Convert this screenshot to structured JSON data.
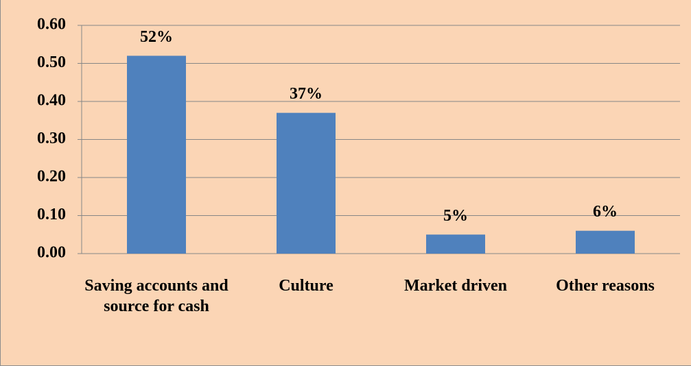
{
  "chart_data": {
    "type": "bar",
    "categories": [
      "Saving accounts and source for cash",
      "Culture",
      "Market driven",
      "Other reasons"
    ],
    "values": [
      0.52,
      0.37,
      0.05,
      0.06
    ],
    "value_labels": [
      "52%",
      "37%",
      "5%",
      "6%"
    ],
    "color": "#4f81bd",
    "ylim": [
      0,
      0.6
    ],
    "yticks": [
      {
        "value": 0,
        "label": "0.00"
      },
      {
        "value": 0.1,
        "label": "0.10"
      },
      {
        "value": 0.2,
        "label": "0.20"
      },
      {
        "value": 0.3,
        "label": "0.30"
      },
      {
        "value": 0.4,
        "label": "0.40"
      },
      {
        "value": 0.5,
        "label": "0.50"
      },
      {
        "value": 0.6,
        "label": "0.60"
      }
    ],
    "grid": true
  }
}
